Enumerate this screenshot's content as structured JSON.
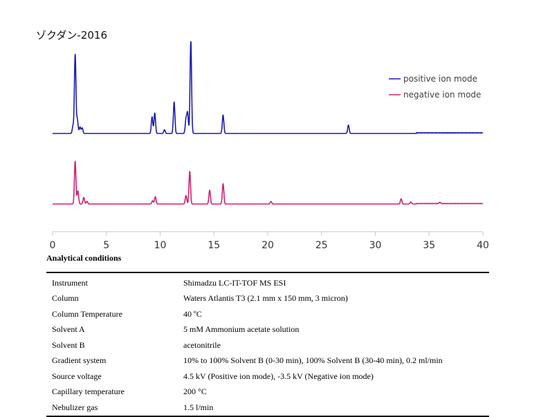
{
  "chart_data": {
    "type": "line",
    "title": "ゾクダン-2016",
    "xlabel": "",
    "ylabel": "",
    "xlim": [
      0,
      40
    ],
    "x_ticks": [
      "0",
      "5",
      "10",
      "15",
      "20",
      "25",
      "30",
      "35",
      "40"
    ],
    "grid": false,
    "legend_position": "top-right",
    "series": [
      {
        "name": "positive ion mode",
        "color": "#1a1ab0",
        "peaks": [
          [
            1.9,
            0.08
          ],
          [
            2.1,
            0.85
          ],
          [
            2.3,
            0.15
          ],
          [
            2.55,
            0.07
          ],
          [
            2.75,
            0.06
          ],
          [
            9.25,
            0.18
          ],
          [
            9.5,
            0.22
          ],
          [
            10.4,
            0.04
          ],
          [
            11.3,
            0.34
          ],
          [
            12.4,
            0.15
          ],
          [
            12.55,
            0.22
          ],
          [
            12.85,
            1.0
          ],
          [
            15.85,
            0.2
          ],
          [
            27.5,
            0.09
          ]
        ]
      },
      {
        "name": "negative ion mode",
        "color": "#d21f72",
        "peaks": [
          [
            2.1,
            0.65
          ],
          [
            2.35,
            0.2
          ],
          [
            2.9,
            0.1
          ],
          [
            3.2,
            0.04
          ],
          [
            9.3,
            0.05
          ],
          [
            9.55,
            0.11
          ],
          [
            12.4,
            0.13
          ],
          [
            12.75,
            0.5
          ],
          [
            14.6,
            0.21
          ],
          [
            15.85,
            0.31
          ],
          [
            20.3,
            0.04
          ],
          [
            32.4,
            0.08
          ],
          [
            33.3,
            0.03
          ],
          [
            36.0,
            0.02
          ]
        ]
      }
    ]
  },
  "conditions": {
    "heading": "Analytical conditions",
    "rows": [
      {
        "key": "Instrument",
        "value": "Shimadzu LC-IT-TOF MS ESI"
      },
      {
        "key": "Column",
        "value": "Waters Atlantis T3 (2.1 mm x 150 mm, 3 micron)"
      },
      {
        "key": "Column Temperature",
        "value": "40 ºC"
      },
      {
        "key": "Solvent A",
        "value": "5 mM Ammonium acetate solution"
      },
      {
        "key": "Solvent B",
        "value": "acetonitrile"
      },
      {
        "key": "Gradient system",
        "value": "10% to 100% Solvent B (0-30 min), 100% Solvent B (30-40 min), 0.2 ml/min"
      },
      {
        "key": "Source voltage",
        "value": "4.5 kV (Positive ion mode), -3.5 kV (Negative ion mode)"
      },
      {
        "key": "Capillary temperature",
        "value": "200 °C"
      },
      {
        "key": "Nebulizer gas",
        "value": "1.5 l/min"
      }
    ]
  }
}
